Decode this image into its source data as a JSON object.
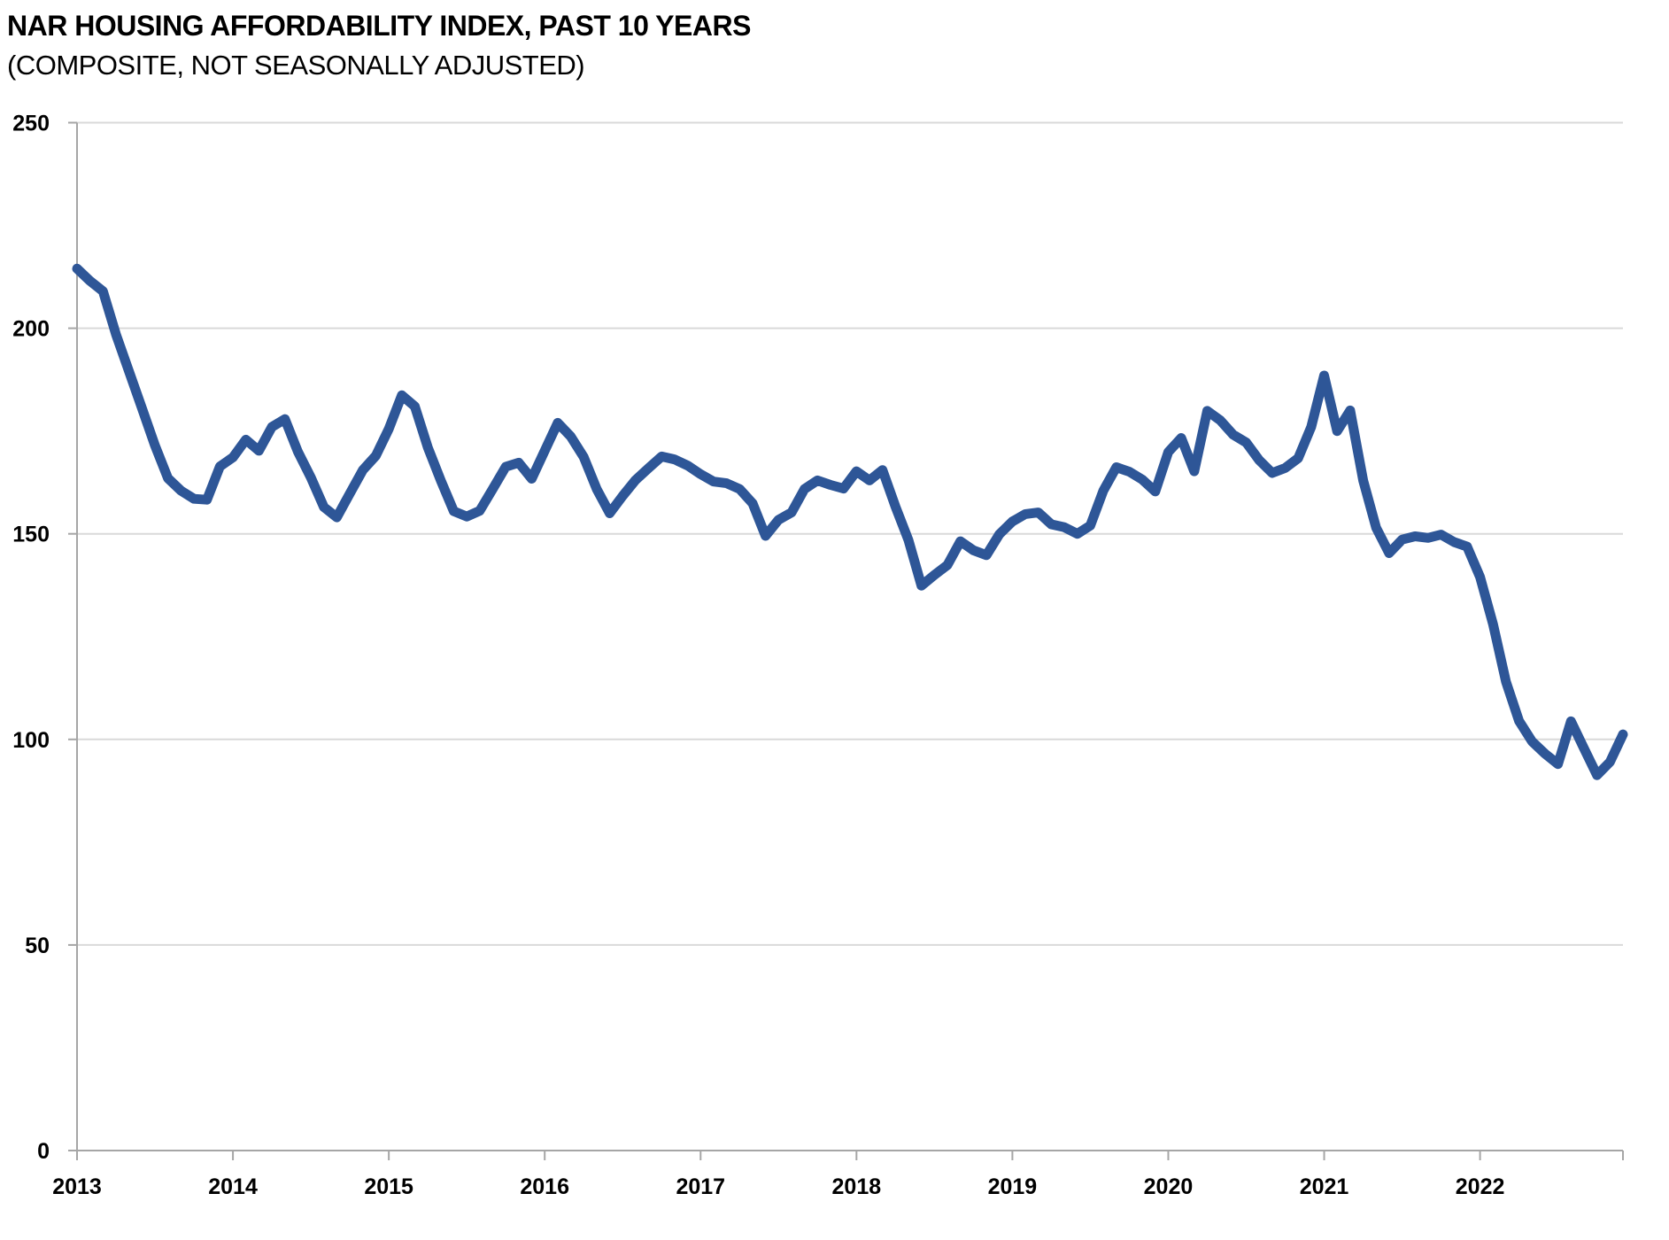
{
  "chart": {
    "title": "NAR HOUSING AFFORDABILITY INDEX, PAST 10 YEARS",
    "subtitle": "(COMPOSITE, NOT SEASONALLY ADJUSTED)"
  },
  "chart_data": {
    "type": "line",
    "title": "NAR HOUSING AFFORDABILITY INDEX, PAST 10 YEARS",
    "subtitle": "(COMPOSITE, NOT SEASONALLY ADJUSTED)",
    "xlabel": "",
    "ylabel": "",
    "ylim": [
      0,
      250
    ],
    "y_ticks": [
      0,
      50,
      100,
      150,
      200,
      250
    ],
    "x_tick_labels": [
      "2013",
      "2014",
      "2015",
      "2016",
      "2017",
      "2018",
      "2019",
      "2020",
      "2021",
      "2022"
    ],
    "grid": "horizontal",
    "legend_position": "none",
    "colors": {
      "line": "#2E5697",
      "grid": "#D9D9D9",
      "axis": "#A6A6A6",
      "text": "#000000"
    },
    "series": [
      {
        "name": "Housing Affordability Index, Composite (Not Seasonally Adjusted)",
        "start": "2013-01",
        "frequency": "monthly",
        "values": [
          214.5,
          211.5,
          209.0,
          198.5,
          189.5,
          180.5,
          171.5,
          163.5,
          160.5,
          158.5,
          158.3,
          166.4,
          168.6,
          172.9,
          170.2,
          176.0,
          177.9,
          170.0,
          163.7,
          156.5,
          154.0,
          159.8,
          165.5,
          169.0,
          175.5,
          183.7,
          181.0,
          171.0,
          163.0,
          155.5,
          154.2,
          155.6,
          160.9,
          166.3,
          167.3,
          163.4,
          170.2,
          177.0,
          173.7,
          168.7,
          160.9,
          155.0,
          159.2,
          163.1,
          166.0,
          168.8,
          168.1,
          166.6,
          164.5,
          162.7,
          162.3,
          160.9,
          157.4,
          149.5,
          153.4,
          155.2,
          160.9,
          163.0,
          161.9,
          161.0,
          165.2,
          163.0,
          165.5,
          156.6,
          148.5,
          137.4,
          140.0,
          142.4,
          148.2,
          146.0,
          144.8,
          149.9,
          153.0,
          154.8,
          155.2,
          152.3,
          151.6,
          150.0,
          152.0,
          160.5,
          166.2,
          165.1,
          163.2,
          160.3,
          169.9,
          173.3,
          165.2,
          179.9,
          177.6,
          174.1,
          172.2,
          167.9,
          164.8,
          166.0,
          168.4,
          176.0,
          188.5,
          175.0,
          180.0,
          163.0,
          151.5,
          145.3,
          148.6,
          149.4,
          149.0,
          149.8,
          148.0,
          146.9,
          139.5,
          128.0,
          114.0,
          104.5,
          99.5,
          96.5,
          94.0,
          104.4,
          97.8,
          91.3,
          94.5,
          101.2
        ]
      }
    ]
  }
}
